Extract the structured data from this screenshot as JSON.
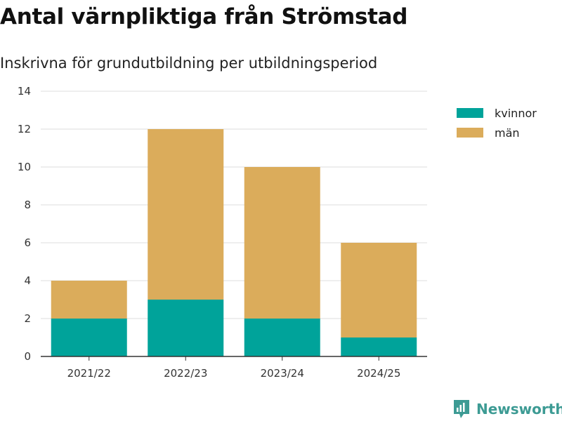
{
  "title": "Antal värnpliktiga från Strömstad",
  "subtitle": "Inskrivna för grundutbildning per utbildningsperiod",
  "brand": {
    "name": "Newsworthy",
    "color": "#3d9b94",
    "icon": "newsworthy-logo-icon"
  },
  "colors": {
    "kvinnor": "#00a39a",
    "man": "#dbac5b",
    "grid": "#dddddd",
    "axis": "#333333"
  },
  "chart_data": {
    "type": "bar",
    "stacked": true,
    "categories": [
      "2021/22",
      "2022/23",
      "2023/24",
      "2024/25"
    ],
    "series": [
      {
        "name": "kvinnor",
        "values": [
          2,
          3,
          2,
          1
        ]
      },
      {
        "name": "män",
        "values": [
          2,
          9,
          8,
          5
        ]
      }
    ],
    "ylim": [
      0,
      14
    ],
    "yticks": [
      0,
      2,
      4,
      6,
      8,
      10,
      12,
      14
    ],
    "grid": true,
    "legend": "top-right"
  }
}
